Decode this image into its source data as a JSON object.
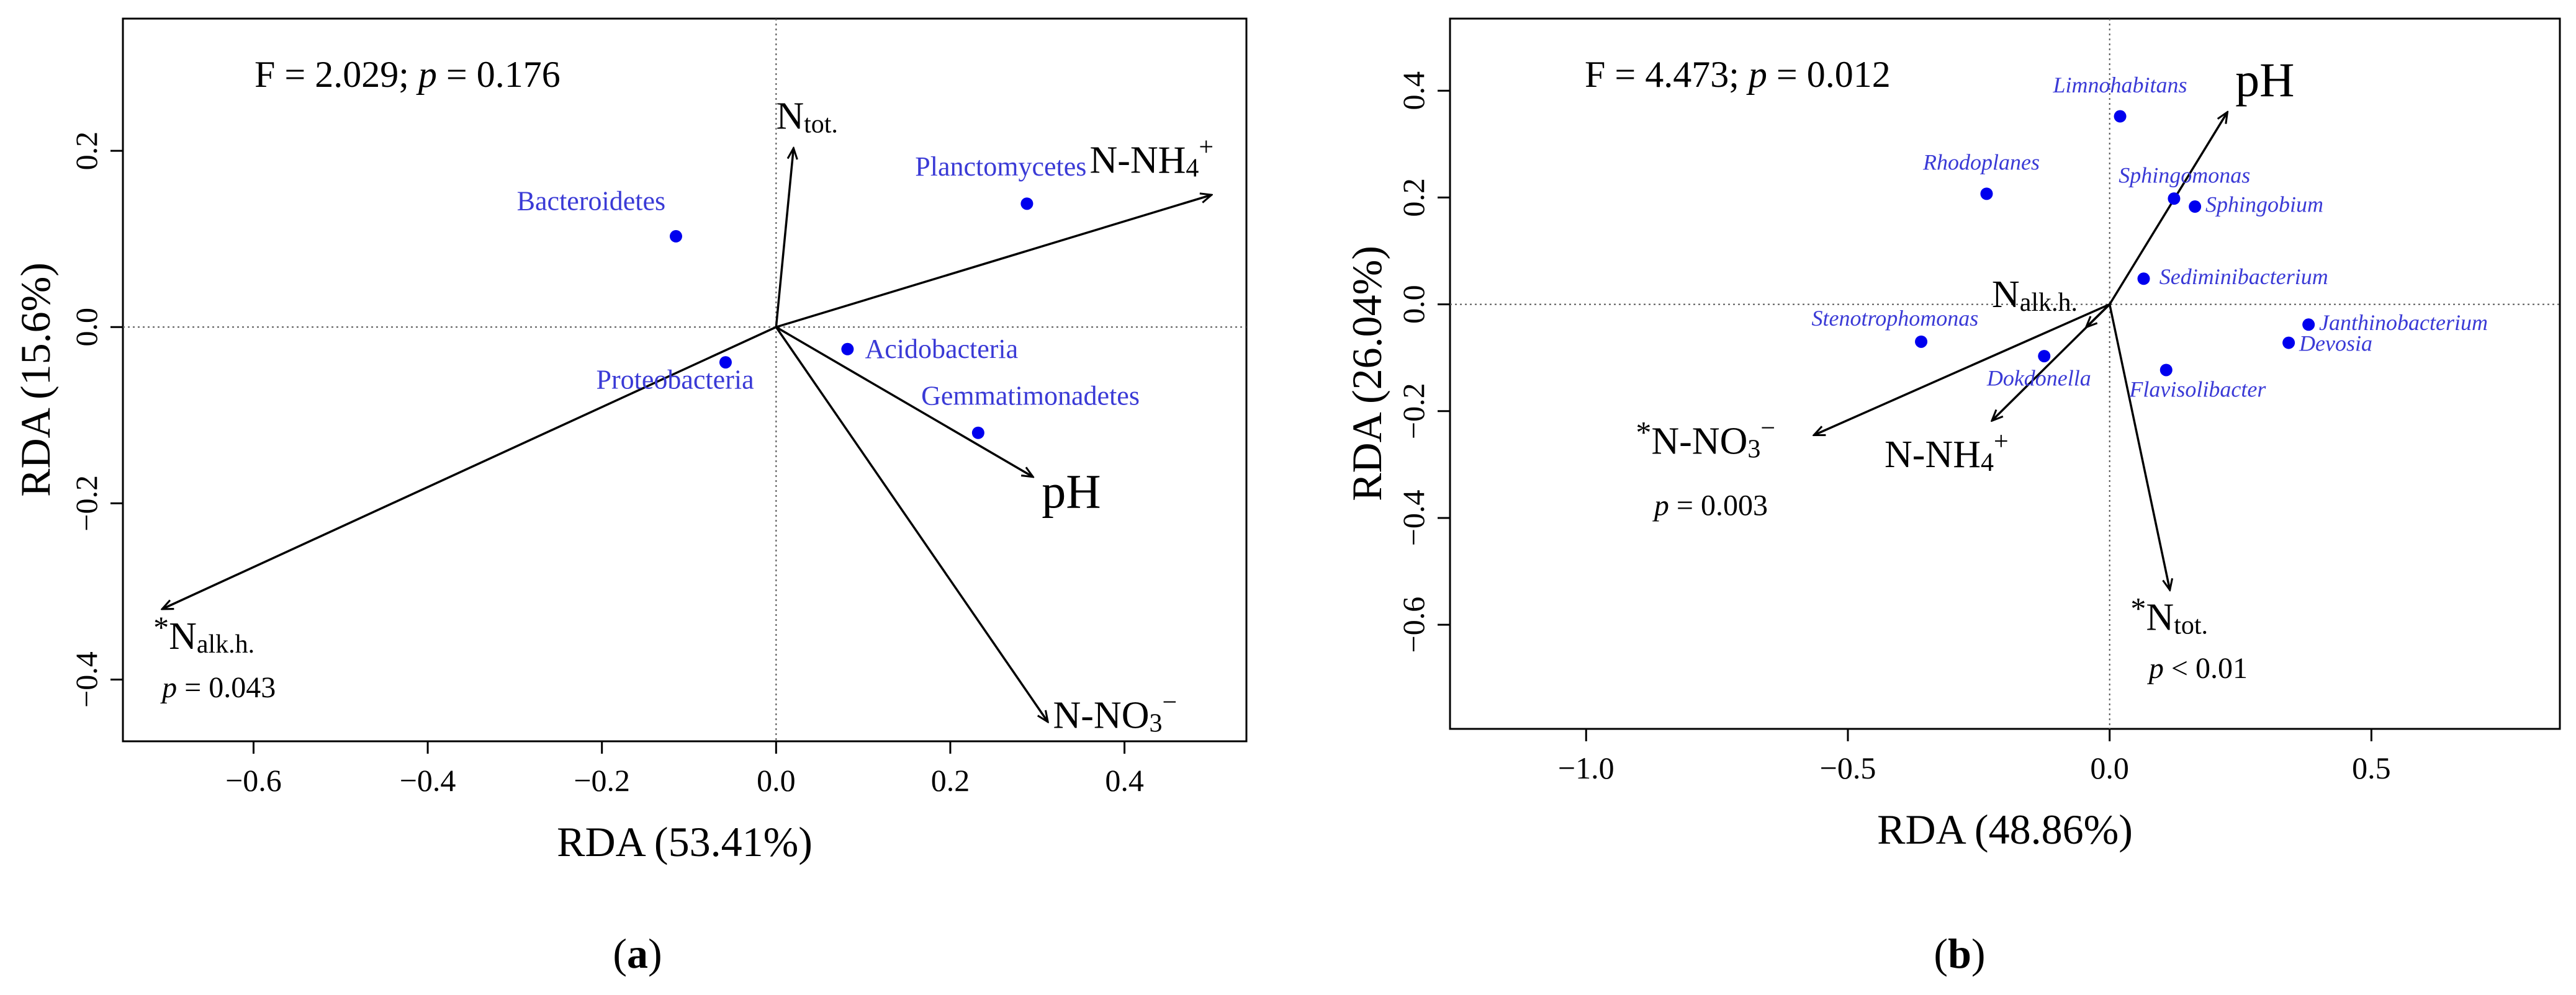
{
  "colors": {
    "species": "#3a3ad6",
    "point": "#0000ee",
    "arrow": "#000000",
    "axis": "#000000"
  },
  "chart_data": [
    {
      "panel_label": "a",
      "type": "scatter",
      "title": "",
      "stat": {
        "F": "2.029",
        "p": "0.176"
      },
      "xlabel": "RDA (53.41%)",
      "ylabel": "RDA (15.6%)",
      "xlim": [
        -0.75,
        0.54
      ],
      "ylim": [
        -0.47,
        0.35
      ],
      "xticks": [
        -0.6,
        -0.4,
        -0.2,
        0.0,
        0.2,
        0.4
      ],
      "xtick_labels": [
        "−0.6",
        "−0.4",
        "−0.2",
        "0.0",
        "0.2",
        "0.4"
      ],
      "yticks": [
        -0.4,
        -0.2,
        0.0,
        0.2
      ],
      "ytick_labels": [
        "−0.4",
        "−0.2",
        "0.0",
        "0.2"
      ],
      "species": [
        {
          "name": "Bacteroidetes",
          "x": -0.115,
          "y": 0.103,
          "italic": false,
          "anchor": "end",
          "dx": -0.012,
          "dy": 0.03
        },
        {
          "name": "Planctomycetes",
          "x": 0.288,
          "y": 0.14,
          "italic": false,
          "anchor": "middle",
          "dx": -0.03,
          "dy": 0.032
        },
        {
          "name": "Proteobacteria",
          "x": -0.058,
          "y": -0.04,
          "italic": false,
          "anchor": "middle",
          "dx": -0.058,
          "dy": -0.03
        },
        {
          "name": "Acidobacteria",
          "x": 0.082,
          "y": -0.025,
          "italic": false,
          "anchor": "start",
          "dx": 0.02,
          "dy": -0.01
        },
        {
          "name": "Gemmatimonadetes",
          "x": 0.232,
          "y": -0.12,
          "italic": false,
          "anchor": "middle",
          "dx": 0.06,
          "dy": 0.032
        }
      ],
      "vectors": [
        {
          "name": "N_tot",
          "main": "N",
          "sub": "tot.",
          "sup": "",
          "star": false,
          "x": 0.02,
          "y": 0.203,
          "lx": 0.0,
          "ly": 0.225,
          "anchor": "start",
          "p": ""
        },
        {
          "name": "N-NH4+",
          "main": "N-NH",
          "sub": "4",
          "sup": "+",
          "star": false,
          "x": 0.5,
          "y": 0.15,
          "lx": 0.36,
          "ly": 0.175,
          "anchor": "start",
          "p": ""
        },
        {
          "name": "pH",
          "main": "pH",
          "sub": "",
          "sup": "",
          "star": false,
          "x": 0.295,
          "y": -0.17,
          "lx": 0.305,
          "ly": -0.205,
          "anchor": "start",
          "p": ""
        },
        {
          "name": "N-NO3-",
          "main": "N-NO",
          "sub": "3",
          "sup": "−",
          "star": false,
          "x": 0.312,
          "y": -0.448,
          "lx": 0.318,
          "ly": -0.455,
          "anchor": "start",
          "p": ""
        },
        {
          "name": "N_alk.h.",
          "main": "N",
          "sub": "alk.h.",
          "sup": "",
          "star": true,
          "x": -0.705,
          "y": -0.32,
          "lx": -0.715,
          "ly": -0.365,
          "anchor": "start",
          "p": "0.043",
          "p_prefix": "= ",
          "px": -0.705,
          "py": -0.42
        }
      ]
    },
    {
      "panel_label": "b",
      "type": "scatter",
      "title": "",
      "stat": {
        "F": "4.473",
        "p": "0.012"
      },
      "xlabel": "RDA (48.86%)",
      "ylabel": "RDA (26.04%)",
      "xlim": [
        -1.26,
        0.86
      ],
      "ylim": [
        -0.795,
        0.535
      ],
      "xticks": [
        -1.0,
        -0.5,
        0.0,
        0.5
      ],
      "xtick_labels": [
        "−1.0",
        "−0.5",
        "0.0",
        "0.5"
      ],
      "yticks": [
        -0.6,
        -0.4,
        -0.2,
        0.0,
        0.2,
        0.4
      ],
      "ytick_labels": [
        "−0.6",
        "−0.4",
        "−0.2",
        "0.0",
        "0.2",
        "0.4"
      ],
      "species": [
        {
          "name": "Limnohabitans",
          "x": 0.02,
          "y": 0.352,
          "italic": true,
          "anchor": "middle",
          "dx": 0.0,
          "dy": 0.045
        },
        {
          "name": "Rhodoplanes",
          "x": -0.235,
          "y": 0.207,
          "italic": true,
          "anchor": "middle",
          "dx": -0.01,
          "dy": 0.045
        },
        {
          "name": "Sphingomonas",
          "x": 0.123,
          "y": 0.198,
          "italic": true,
          "anchor": "middle",
          "dx": 0.02,
          "dy": 0.03
        },
        {
          "name": "Sphingobium",
          "x": 0.163,
          "y": 0.183,
          "italic": true,
          "anchor": "start",
          "dx": 0.02,
          "dy": -0.01
        },
        {
          "name": "Sediminibacterium",
          "x": 0.065,
          "y": 0.048,
          "italic": true,
          "anchor": "start",
          "dx": 0.03,
          "dy": -0.01
        },
        {
          "name": "Janthinobacterium",
          "x": 0.38,
          "y": -0.038,
          "italic": true,
          "anchor": "start",
          "dx": 0.02,
          "dy": -0.01
        },
        {
          "name": "Devosia",
          "x": 0.342,
          "y": -0.072,
          "italic": true,
          "anchor": "start",
          "dx": 0.02,
          "dy": -0.015
        },
        {
          "name": "Stenotrophomonas",
          "x": -0.36,
          "y": -0.07,
          "italic": true,
          "anchor": "middle",
          "dx": -0.05,
          "dy": 0.03
        },
        {
          "name": "Dokdonella",
          "x": -0.125,
          "y": -0.097,
          "italic": true,
          "anchor": "middle",
          "dx": -0.01,
          "dy": -0.055
        },
        {
          "name": "Flavisolibacter",
          "x": 0.108,
          "y": -0.123,
          "italic": true,
          "anchor": "middle",
          "dx": 0.06,
          "dy": -0.05
        }
      ],
      "vectors": [
        {
          "name": "pH",
          "main": "pH",
          "sub": "",
          "sup": "",
          "star": false,
          "x": 0.225,
          "y": 0.36,
          "lx": 0.24,
          "ly": 0.39,
          "anchor": "start",
          "p": ""
        },
        {
          "name": "N_alk.h.",
          "main": "N",
          "sub": "alk.h.",
          "sup": "",
          "star": false,
          "x": -0.045,
          "y": -0.043,
          "lx": -0.225,
          "ly": -0.005,
          "anchor": "start",
          "p": ""
        },
        {
          "name": "N-NH4+",
          "main": "N-NH",
          "sub": "4",
          "sup": "+",
          "star": false,
          "x": -0.225,
          "y": -0.218,
          "lx": -0.43,
          "ly": -0.305,
          "anchor": "start",
          "p": ""
        },
        {
          "name": "N-NO3-",
          "main": "N-NO",
          "sub": "3",
          "sup": "−",
          "star": true,
          "x": -0.565,
          "y": -0.245,
          "lx": -0.905,
          "ly": -0.28,
          "anchor": "start",
          "p": "0.003",
          "p_prefix": "= ",
          "px": -0.87,
          "py": -0.395
        },
        {
          "name": "N_tot",
          "main": "N",
          "sub": "tot.",
          "sup": "",
          "star": true,
          "x": 0.115,
          "y": -0.535,
          "lx": 0.04,
          "ly": -0.61,
          "anchor": "start",
          "p": "0.01",
          "p_prefix": "< ",
          "px": 0.075,
          "py": -0.7
        }
      ]
    }
  ]
}
